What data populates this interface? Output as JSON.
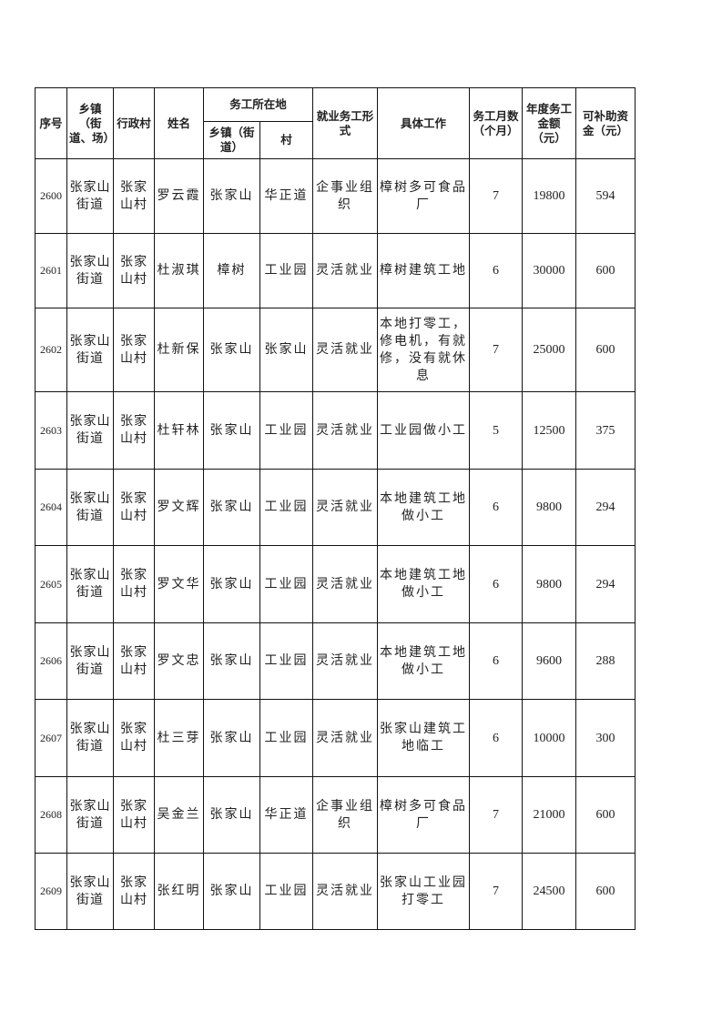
{
  "headers": {
    "seq": "序号",
    "town": "乡镇（街道、场）",
    "village": "行政村",
    "name": "姓名",
    "work_location": "务工所在地",
    "work_town": "乡镇（街道）",
    "work_village": "村",
    "employment_type": "就业务工形式",
    "job": "具体工作",
    "months": "务工月数（个月）",
    "annual_income": "年度务工金额（元）",
    "subsidy": "可补助资金（元）"
  },
  "rows": [
    {
      "seq": "2600",
      "town": "张家山街道",
      "village": "张家山村",
      "name": "罗云霞",
      "work_town": "张家山",
      "work_village": "华正道",
      "type": "企事业组织",
      "job": "樟树多可食品厂",
      "months": "7",
      "income": "19800",
      "subsidy": "594"
    },
    {
      "seq": "2601",
      "town": "张家山街道",
      "village": "张家山村",
      "name": "杜淑琪",
      "work_town": "樟树",
      "work_village": "工业园",
      "type": "灵活就业",
      "job": "樟树建筑工地",
      "months": "6",
      "income": "30000",
      "subsidy": "600"
    },
    {
      "seq": "2602",
      "town": "张家山街道",
      "village": "张家山村",
      "name": "杜新保",
      "work_town": "张家山",
      "work_village": "张家山",
      "type": "灵活就业",
      "job": "本地打零工，修电机，有就修，没有就休息",
      "months": "7",
      "income": "25000",
      "subsidy": "600"
    },
    {
      "seq": "2603",
      "town": "张家山街道",
      "village": "张家山村",
      "name": "杜轩林",
      "work_town": "张家山",
      "work_village": "工业园",
      "type": "灵活就业",
      "job": "工业园做小工",
      "months": "5",
      "income": "12500",
      "subsidy": "375"
    },
    {
      "seq": "2604",
      "town": "张家山街道",
      "village": "张家山村",
      "name": "罗文辉",
      "work_town": "张家山",
      "work_village": "工业园",
      "type": "灵活就业",
      "job": "本地建筑工地做小工",
      "months": "6",
      "income": "9800",
      "subsidy": "294"
    },
    {
      "seq": "2605",
      "town": "张家山街道",
      "village": "张家山村",
      "name": "罗文华",
      "work_town": "张家山",
      "work_village": "工业园",
      "type": "灵活就业",
      "job": "本地建筑工地做小工",
      "months": "6",
      "income": "9800",
      "subsidy": "294"
    },
    {
      "seq": "2606",
      "town": "张家山街道",
      "village": "张家山村",
      "name": "罗文忠",
      "work_town": "张家山",
      "work_village": "工业园",
      "type": "灵活就业",
      "job": "本地建筑工地做小工",
      "months": "6",
      "income": "9600",
      "subsidy": "288"
    },
    {
      "seq": "2607",
      "town": "张家山街道",
      "village": "张家山村",
      "name": "杜三芽",
      "work_town": "张家山",
      "work_village": "工业园",
      "type": "灵活就业",
      "job": "张家山建筑工地临工",
      "months": "6",
      "income": "10000",
      "subsidy": "300"
    },
    {
      "seq": "2608",
      "town": "张家山街道",
      "village": "张家山村",
      "name": "吴金兰",
      "work_town": "张家山",
      "work_village": "华正道",
      "type": "企事业组织",
      "job": "樟树多可食品厂",
      "months": "7",
      "income": "21000",
      "subsidy": "600"
    },
    {
      "seq": "2609",
      "town": "张家山街道",
      "village": "张家山村",
      "name": "张红明",
      "work_town": "张家山",
      "work_village": "工业园",
      "type": "灵活就业",
      "job": "张家山工业园打零工",
      "months": "7",
      "income": "24500",
      "subsidy": "600"
    }
  ]
}
